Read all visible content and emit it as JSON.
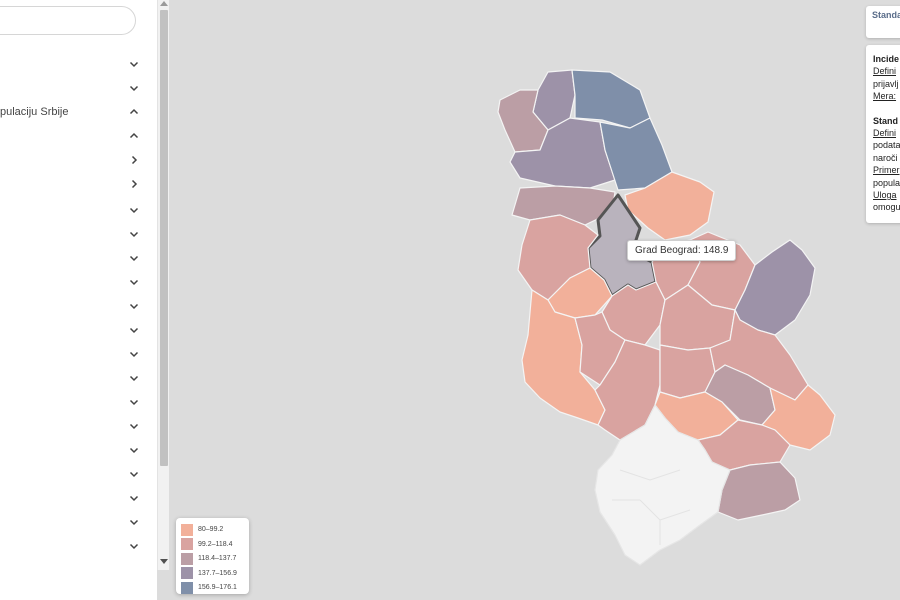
{
  "sidebar": {
    "search_placeholder": "",
    "items": [
      {
        "label": "",
        "chevron": "down"
      },
      {
        "label": "",
        "chevron": "down"
      },
      {
        "label": "pulaciju Srbije",
        "chevron": "up"
      },
      {
        "label": "",
        "chevron": "up"
      },
      {
        "label": "",
        "chevron": "right"
      },
      {
        "label": "",
        "chevron": "right"
      },
      {
        "label": "",
        "chevron": "down"
      },
      {
        "label": "",
        "chevron": "down"
      },
      {
        "label": "",
        "chevron": "down"
      },
      {
        "label": "",
        "chevron": "down"
      },
      {
        "label": "",
        "chevron": "down"
      },
      {
        "label": "",
        "chevron": "down"
      },
      {
        "label": "",
        "chevron": "down"
      },
      {
        "label": "",
        "chevron": "down"
      },
      {
        "label": "",
        "chevron": "down"
      },
      {
        "label": "",
        "chevron": "down"
      },
      {
        "label": "",
        "chevron": "down"
      },
      {
        "label": "",
        "chevron": "down"
      },
      {
        "label": "",
        "chevron": "down"
      },
      {
        "label": "",
        "chevron": "down"
      },
      {
        "label": "",
        "chevron": "down"
      }
    ]
  },
  "tooltip": {
    "region": "Grad Beograd",
    "value": "148.9",
    "text": "Grad Beograd: 148.9"
  },
  "legend": {
    "items": [
      {
        "label": "80–99.2",
        "color": "#f2b09a"
      },
      {
        "label": "99.2–118.4",
        "color": "#d9a3a0"
      },
      {
        "label": "118.4–137.7",
        "color": "#bb9ea5"
      },
      {
        "label": "137.7–156.9",
        "color": "#9d92a8"
      },
      {
        "label": "156.9–176.1",
        "color": "#7f8fa9"
      }
    ]
  },
  "right_panel": {
    "top_title": "Standa",
    "lines": [
      {
        "text": "Incide",
        "style": "h"
      },
      {
        "text": "Defini",
        "style": "u"
      },
      {
        "text": "prijavlj",
        "style": "p"
      },
      {
        "text": "Mera",
        "suffix": ":",
        "style": "u"
      },
      {
        "text": "",
        "style": "gap"
      },
      {
        "text": "Stand",
        "style": "h"
      },
      {
        "text": "Defini",
        "style": "u"
      },
      {
        "text": "podata",
        "style": "p"
      },
      {
        "text": "naroči",
        "style": "p"
      },
      {
        "text": "Primer",
        "style": "u"
      },
      {
        "text": "popula",
        "style": "p"
      },
      {
        "text": "Uloga",
        "style": "u"
      },
      {
        "text": "omogu",
        "style": "p"
      }
    ]
  },
  "colors": {
    "no_data": "#f3f3f3",
    "background": "#dcdcdc",
    "highlight_stroke": "#555555"
  }
}
